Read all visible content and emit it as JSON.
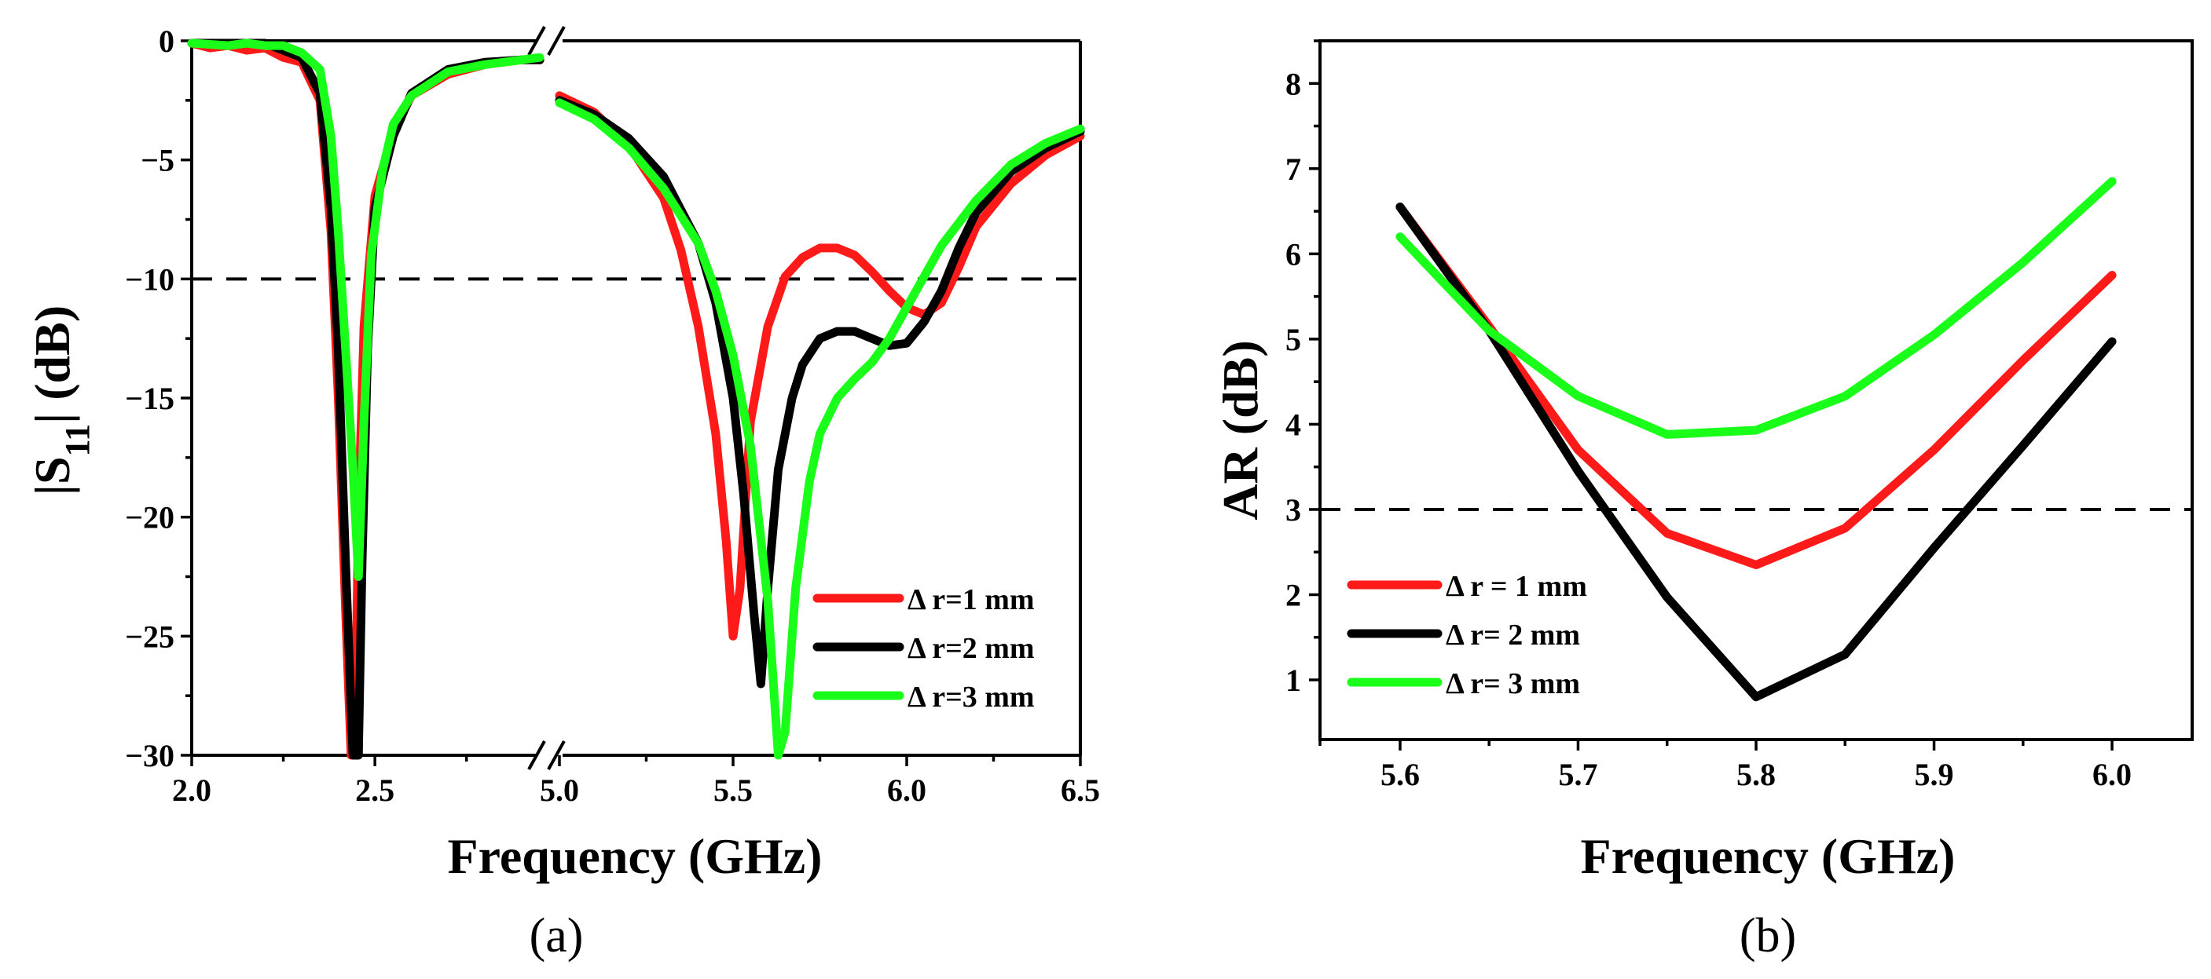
{
  "colors": {
    "red": "#ff1a1a",
    "black": "#000000",
    "green": "#1aff1a"
  },
  "chart_data": [
    {
      "type": "line",
      "panel": "a",
      "caption": "(a)",
      "xlabel": "Frequency (GHz)",
      "ylabel_main": "|S",
      "ylabel_sub": "11",
      "ylabel_tail": "| (dB)",
      "axis_break": true,
      "xlim_segments": [
        [
          2.0,
          2.95
        ],
        [
          5.0,
          6.5
        ]
      ],
      "ylim": [
        -30,
        0
      ],
      "x_ticks": [
        "2.0",
        "2.5",
        "5.0",
        "5.5",
        "6.0",
        "6.5"
      ],
      "y_ticks": [
        "0",
        "−5",
        "−10",
        "−15",
        "−20",
        "−25",
        "−30"
      ],
      "reference_line": -10,
      "legend_position": "lower-right",
      "series": [
        {
          "name": "Δ r=1 mm",
          "color": "#ff1a1a",
          "segment1": [
            [
              2.0,
              -0.1
            ],
            [
              2.05,
              -0.3
            ],
            [
              2.1,
              -0.2
            ],
            [
              2.15,
              -0.4
            ],
            [
              2.2,
              -0.3
            ],
            [
              2.25,
              -0.7
            ],
            [
              2.3,
              -0.9
            ],
            [
              2.35,
              -2.5
            ],
            [
              2.38,
              -8
            ],
            [
              2.4,
              -15
            ],
            [
              2.42,
              -24
            ],
            [
              2.435,
              -30
            ],
            [
              2.445,
              -30
            ],
            [
              2.455,
              -20
            ],
            [
              2.47,
              -12
            ],
            [
              2.5,
              -6.5
            ],
            [
              2.55,
              -3.8
            ],
            [
              2.6,
              -2.3
            ],
            [
              2.7,
              -1.4
            ],
            [
              2.8,
              -1.0
            ],
            [
              2.9,
              -0.8
            ],
            [
              2.95,
              -0.8
            ]
          ],
          "segment2": [
            [
              5.0,
              -2.3
            ],
            [
              5.1,
              -3.0
            ],
            [
              5.2,
              -4.4
            ],
            [
              5.3,
              -6.6
            ],
            [
              5.35,
              -8.8
            ],
            [
              5.4,
              -12
            ],
            [
              5.45,
              -16.5
            ],
            [
              5.48,
              -21
            ],
            [
              5.5,
              -25
            ],
            [
              5.52,
              -23
            ],
            [
              5.55,
              -16
            ],
            [
              5.6,
              -12
            ],
            [
              5.65,
              -9.9
            ],
            [
              5.7,
              -9.1
            ],
            [
              5.75,
              -8.7
            ],
            [
              5.8,
              -8.7
            ],
            [
              5.85,
              -9.0
            ],
            [
              5.9,
              -9.7
            ],
            [
              5.95,
              -10.5
            ],
            [
              6.0,
              -11.2
            ],
            [
              6.05,
              -11.5
            ],
            [
              6.1,
              -11
            ],
            [
              6.15,
              -9.5
            ],
            [
              6.2,
              -7.8
            ],
            [
              6.3,
              -6
            ],
            [
              6.4,
              -4.8
            ],
            [
              6.5,
              -4.0
            ]
          ]
        },
        {
          "name": "Δ r=2 mm",
          "color": "#000000",
          "segment1": [
            [
              2.0,
              -0.1
            ],
            [
              2.1,
              -0.1
            ],
            [
              2.2,
              -0.1
            ],
            [
              2.25,
              -0.4
            ],
            [
              2.3,
              -0.7
            ],
            [
              2.35,
              -2.2
            ],
            [
              2.38,
              -7
            ],
            [
              2.4,
              -13
            ],
            [
              2.42,
              -22
            ],
            [
              2.44,
              -30
            ],
            [
              2.455,
              -30
            ],
            [
              2.465,
              -22
            ],
            [
              2.48,
              -13
            ],
            [
              2.5,
              -7
            ],
            [
              2.55,
              -4
            ],
            [
              2.6,
              -2.2
            ],
            [
              2.7,
              -1.2
            ],
            [
              2.8,
              -0.9
            ],
            [
              2.9,
              -0.8
            ],
            [
              2.95,
              -0.8
            ]
          ],
          "segment2": [
            [
              5.0,
              -2.5
            ],
            [
              5.1,
              -3.1
            ],
            [
              5.2,
              -4.1
            ],
            [
              5.3,
              -5.7
            ],
            [
              5.4,
              -8.5
            ],
            [
              5.45,
              -11
            ],
            [
              5.5,
              -15
            ],
            [
              5.53,
              -19
            ],
            [
              5.56,
              -24
            ],
            [
              5.58,
              -27
            ],
            [
              5.6,
              -23
            ],
            [
              5.63,
              -18
            ],
            [
              5.67,
              -15
            ],
            [
              5.7,
              -13.6
            ],
            [
              5.75,
              -12.5
            ],
            [
              5.8,
              -12.2
            ],
            [
              5.85,
              -12.2
            ],
            [
              5.9,
              -12.5
            ],
            [
              5.95,
              -12.8
            ],
            [
              6.0,
              -12.7
            ],
            [
              6.05,
              -11.8
            ],
            [
              6.1,
              -10.5
            ],
            [
              6.15,
              -8.7
            ],
            [
              6.2,
              -7.2
            ],
            [
              6.3,
              -5.5
            ],
            [
              6.4,
              -4.5
            ],
            [
              6.5,
              -3.8
            ]
          ]
        },
        {
          "name": "Δ r=3 mm",
          "color": "#1aff1a",
          "segment1": [
            [
              2.0,
              -0.1
            ],
            [
              2.1,
              -0.2
            ],
            [
              2.15,
              -0.1
            ],
            [
              2.2,
              -0.2
            ],
            [
              2.25,
              -0.2
            ],
            [
              2.3,
              -0.5
            ],
            [
              2.35,
              -1.2
            ],
            [
              2.38,
              -4
            ],
            [
              2.4,
              -8
            ],
            [
              2.42,
              -13
            ],
            [
              2.44,
              -18
            ],
            [
              2.455,
              -22.5
            ],
            [
              2.47,
              -16
            ],
            [
              2.49,
              -9
            ],
            [
              2.52,
              -5.5
            ],
            [
              2.55,
              -3.5
            ],
            [
              2.6,
              -2.3
            ],
            [
              2.7,
              -1.3
            ],
            [
              2.8,
              -1.0
            ],
            [
              2.9,
              -0.8
            ],
            [
              2.95,
              -0.7
            ]
          ],
          "segment2": [
            [
              5.0,
              -2.6
            ],
            [
              5.1,
              -3.3
            ],
            [
              5.2,
              -4.5
            ],
            [
              5.3,
              -6.2
            ],
            [
              5.4,
              -8.5
            ],
            [
              5.45,
              -10.5
            ],
            [
              5.5,
              -13.2
            ],
            [
              5.55,
              -17
            ],
            [
              5.6,
              -23.5
            ],
            [
              5.63,
              -30
            ],
            [
              5.65,
              -29
            ],
            [
              5.68,
              -23
            ],
            [
              5.72,
              -18.5
            ],
            [
              5.75,
              -16.5
            ],
            [
              5.8,
              -15
            ],
            [
              5.85,
              -14.2
            ],
            [
              5.9,
              -13.5
            ],
            [
              5.95,
              -12.5
            ],
            [
              6.0,
              -11.2
            ],
            [
              6.05,
              -9.9
            ],
            [
              6.1,
              -8.6
            ],
            [
              6.2,
              -6.7
            ],
            [
              6.3,
              -5.2
            ],
            [
              6.4,
              -4.3
            ],
            [
              6.5,
              -3.7
            ]
          ]
        }
      ]
    },
    {
      "type": "line",
      "panel": "b",
      "caption": "(b)",
      "xlabel": "Frequency (GHz)",
      "ylabel": "AR (dB)",
      "xlim": [
        5.555,
        6.045
      ],
      "ylim": [
        0.3,
        8.5
      ],
      "x_ticks": [
        "5.6",
        "5.7",
        "5.8",
        "5.9",
        "6.0"
      ],
      "y_ticks": [
        "1",
        "2",
        "3",
        "4",
        "5",
        "6",
        "7",
        "8"
      ],
      "reference_line": 3,
      "legend_position": "lower-left",
      "series": [
        {
          "name": "Δ r = 1 mm",
          "color": "#ff1a1a",
          "points": [
            [
              5.6,
              6.55
            ],
            [
              5.65,
              5.15
            ],
            [
              5.7,
              3.7
            ],
            [
              5.75,
              2.72
            ],
            [
              5.8,
              2.35
            ],
            [
              5.85,
              2.78
            ],
            [
              5.9,
              3.7
            ],
            [
              5.95,
              4.75
            ],
            [
              6.0,
              5.75
            ]
          ]
        },
        {
          "name": "Δ r= 2 mm",
          "color": "#000000",
          "points": [
            [
              5.6,
              6.55
            ],
            [
              5.65,
              5.1
            ],
            [
              5.7,
              3.45
            ],
            [
              5.75,
              1.97
            ],
            [
              5.8,
              0.8
            ],
            [
              5.85,
              1.3
            ],
            [
              5.9,
              2.55
            ],
            [
              5.95,
              3.75
            ],
            [
              6.0,
              4.97
            ]
          ]
        },
        {
          "name": "Δ r= 3 mm",
          "color": "#1aff1a",
          "points": [
            [
              5.6,
              6.2
            ],
            [
              5.65,
              5.1
            ],
            [
              5.7,
              4.33
            ],
            [
              5.75,
              3.88
            ],
            [
              5.8,
              3.93
            ],
            [
              5.85,
              4.33
            ],
            [
              5.9,
              5.05
            ],
            [
              5.95,
              5.9
            ],
            [
              6.0,
              6.85
            ]
          ]
        }
      ]
    }
  ]
}
